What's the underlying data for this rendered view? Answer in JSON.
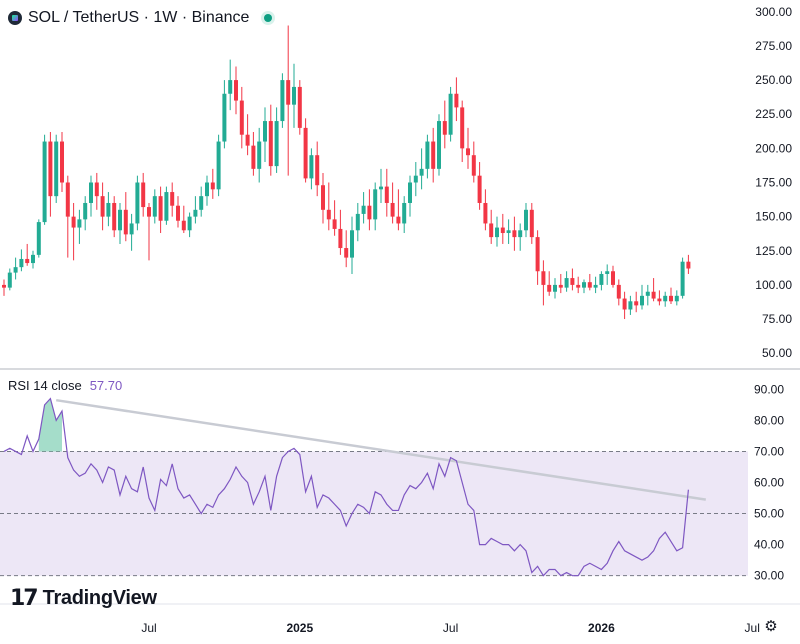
{
  "header": {
    "title": "SOL / TetherUS · 1W · Binance",
    "icon": "solana-icon",
    "status": "market-open"
  },
  "rsi": {
    "label": "RSI 14 close",
    "value": "57.70"
  },
  "branding": {
    "mark": "17",
    "text": "TradingView"
  },
  "colors": {
    "up": "#22ab94",
    "down": "#f23645",
    "rsi_line": "#7e57c2",
    "rsi_band": "#ede7f6",
    "trendline": "#d1d4dc"
  },
  "chart_data": [
    {
      "type": "candlestick",
      "title": "SOL / TetherUS · 1W · Binance",
      "y_ticks": [
        "300.00",
        "275.00",
        "250.00",
        "225.00",
        "200.00",
        "175.00",
        "150.00",
        "125.00",
        "100.00",
        "75.00",
        "50.00"
      ],
      "ylim": [
        45,
        305
      ],
      "x_ticks": [
        {
          "label": "Jul",
          "week": 25,
          "bold": false
        },
        {
          "label": "2025",
          "week": 51,
          "bold": true
        },
        {
          "label": "Jul",
          "week": 77,
          "bold": false
        },
        {
          "label": "2026",
          "week": 103,
          "bold": true
        },
        {
          "label": "Jul",
          "week": 129,
          "bold": false
        }
      ],
      "candles": [
        [
          100,
          104,
          92,
          98
        ],
        [
          98,
          112,
          96,
          109
        ],
        [
          109,
          120,
          104,
          113
        ],
        [
          113,
          126,
          110,
          119
        ],
        [
          119,
          130,
          114,
          116
        ],
        [
          116,
          125,
          112,
          122
        ],
        [
          122,
          148,
          120,
          146
        ],
        [
          146,
          210,
          144,
          205
        ],
        [
          205,
          212,
          150,
          165
        ],
        [
          165,
          210,
          160,
          205
        ],
        [
          205,
          212,
          168,
          175
        ],
        [
          175,
          180,
          120,
          150
        ],
        [
          150,
          160,
          118,
          142
        ],
        [
          142,
          155,
          130,
          148
        ],
        [
          148,
          165,
          140,
          160
        ],
        [
          160,
          180,
          150,
          175
        ],
        [
          175,
          182,
          155,
          165
        ],
        [
          165,
          175,
          140,
          150
        ],
        [
          150,
          168,
          143,
          160
        ],
        [
          160,
          165,
          135,
          140
        ],
        [
          140,
          160,
          130,
          155
        ],
        [
          155,
          168,
          132,
          137
        ],
        [
          137,
          152,
          125,
          145
        ],
        [
          145,
          180,
          140,
          175
        ],
        [
          175,
          182,
          150,
          157
        ],
        [
          157,
          160,
          118,
          150
        ],
        [
          150,
          170,
          145,
          165
        ],
        [
          165,
          172,
          138,
          147
        ],
        [
          147,
          172,
          144,
          168
        ],
        [
          168,
          175,
          150,
          158
        ],
        [
          158,
          165,
          142,
          147
        ],
        [
          147,
          158,
          138,
          140
        ],
        [
          140,
          153,
          135,
          150
        ],
        [
          150,
          165,
          145,
          155
        ],
        [
          155,
          172,
          150,
          165
        ],
        [
          165,
          180,
          158,
          175
        ],
        [
          175,
          185,
          163,
          170
        ],
        [
          170,
          210,
          165,
          205
        ],
        [
          205,
          250,
          200,
          240
        ],
        [
          240,
          265,
          228,
          250
        ],
        [
          250,
          260,
          225,
          235
        ],
        [
          235,
          245,
          200,
          210
        ],
        [
          210,
          225,
          195,
          202
        ],
        [
          202,
          212,
          180,
          185
        ],
        [
          185,
          215,
          175,
          205
        ],
        [
          205,
          230,
          190,
          220
        ],
        [
          220,
          232,
          180,
          187
        ],
        [
          187,
          230,
          182,
          220
        ],
        [
          220,
          255,
          215,
          250
        ],
        [
          250,
          290,
          180,
          232
        ],
        [
          232,
          262,
          215,
          245
        ],
        [
          245,
          250,
          210,
          215
        ],
        [
          215,
          222,
          175,
          178
        ],
        [
          178,
          200,
          170,
          195
        ],
        [
          195,
          205,
          165,
          173
        ],
        [
          173,
          182,
          145,
          155
        ],
        [
          155,
          175,
          140,
          148
        ],
        [
          148,
          162,
          136,
          141
        ],
        [
          141,
          155,
          122,
          127
        ],
        [
          127,
          140,
          113,
          120
        ],
        [
          120,
          150,
          108,
          140
        ],
        [
          140,
          160,
          132,
          152
        ],
        [
          152,
          168,
          145,
          158
        ],
        [
          158,
          170,
          140,
          148
        ],
        [
          148,
          175,
          140,
          170
        ],
        [
          170,
          185,
          160,
          172
        ],
        [
          172,
          185,
          150,
          160
        ],
        [
          160,
          175,
          145,
          150
        ],
        [
          150,
          170,
          140,
          145
        ],
        [
          145,
          165,
          138,
          160
        ],
        [
          160,
          180,
          150,
          175
        ],
        [
          175,
          190,
          165,
          180
        ],
        [
          180,
          200,
          170,
          185
        ],
        [
          185,
          210,
          178,
          205
        ],
        [
          205,
          215,
          175,
          185
        ],
        [
          185,
          225,
          180,
          220
        ],
        [
          220,
          235,
          200,
          210
        ],
        [
          210,
          245,
          205,
          240
        ],
        [
          240,
          252,
          220,
          230
        ],
        [
          230,
          235,
          190,
          200
        ],
        [
          200,
          215,
          185,
          195
        ],
        [
          195,
          205,
          175,
          180
        ],
        [
          180,
          190,
          155,
          160
        ],
        [
          160,
          170,
          140,
          145
        ],
        [
          145,
          155,
          130,
          135
        ],
        [
          135,
          150,
          128,
          142
        ],
        [
          142,
          152,
          130,
          138
        ],
        [
          138,
          148,
          130,
          140
        ],
        [
          140,
          150,
          125,
          135
        ],
        [
          135,
          145,
          125,
          140
        ],
        [
          140,
          160,
          135,
          155
        ],
        [
          155,
          160,
          130,
          135
        ],
        [
          135,
          140,
          100,
          110
        ],
        [
          110,
          118,
          85,
          100
        ],
        [
          100,
          110,
          92,
          95
        ],
        [
          95,
          105,
          90,
          100
        ],
        [
          100,
          108,
          94,
          98
        ],
        [
          98,
          110,
          95,
          105
        ],
        [
          105,
          112,
          96,
          100
        ],
        [
          100,
          106,
          94,
          98
        ],
        [
          98,
          104,
          94,
          102
        ],
        [
          102,
          108,
          96,
          98
        ],
        [
          98,
          106,
          94,
          100
        ],
        [
          100,
          110,
          96,
          108
        ],
        [
          108,
          115,
          100,
          110
        ],
        [
          110,
          114,
          98,
          100
        ],
        [
          100,
          104,
          85,
          90
        ],
        [
          90,
          95,
          75,
          82
        ],
        [
          82,
          92,
          78,
          88
        ],
        [
          88,
          95,
          80,
          85
        ],
        [
          85,
          100,
          82,
          92
        ],
        [
          92,
          100,
          85,
          95
        ],
        [
          95,
          105,
          88,
          90
        ],
        [
          90,
          96,
          85,
          88
        ],
        [
          88,
          95,
          84,
          92
        ],
        [
          92,
          98,
          86,
          88
        ],
        [
          88,
          96,
          85,
          92
        ],
        [
          92,
          120,
          90,
          117
        ],
        [
          117,
          122,
          108,
          112
        ]
      ]
    },
    {
      "type": "line",
      "title": "RSI 14 close",
      "latest": 57.7,
      "y_ticks": [
        "90.00",
        "80.00",
        "70.00",
        "60.00",
        "50.00",
        "40.00",
        "30.00"
      ],
      "ylim": [
        27,
        93
      ],
      "bands": [
        70,
        50,
        30
      ],
      "values": [
        70,
        71,
        70,
        69,
        75,
        70,
        74,
        85,
        87,
        80,
        83,
        68,
        64,
        62,
        63,
        66,
        64,
        60,
        65,
        64,
        56,
        62,
        58,
        57,
        65,
        55,
        51,
        61,
        59,
        66,
        58,
        55,
        56,
        53,
        50,
        53,
        52,
        56,
        58,
        61,
        65,
        62,
        60,
        53,
        57,
        62,
        51,
        62,
        68,
        70,
        71,
        69,
        57,
        62,
        52,
        56,
        55,
        53,
        51,
        46,
        50,
        53,
        52,
        50,
        57,
        56,
        53,
        51,
        51,
        56,
        59,
        58,
        60,
        63,
        58,
        66,
        62,
        68,
        67,
        60,
        53,
        51,
        40,
        40,
        42,
        41,
        40,
        40,
        38,
        40,
        38,
        31,
        33,
        30,
        32,
        32,
        30,
        31,
        30,
        30,
        33,
        34,
        33,
        32,
        34,
        38,
        41,
        38,
        37,
        36,
        35,
        36,
        38,
        42,
        44,
        41,
        38,
        39,
        57.7
      ],
      "trendline": {
        "from": [
          9,
          86.5
        ],
        "to": [
          121,
          54.5
        ]
      },
      "peak_fill": {
        "from_week": 6,
        "to_week": 10,
        "level": 70
      }
    }
  ]
}
